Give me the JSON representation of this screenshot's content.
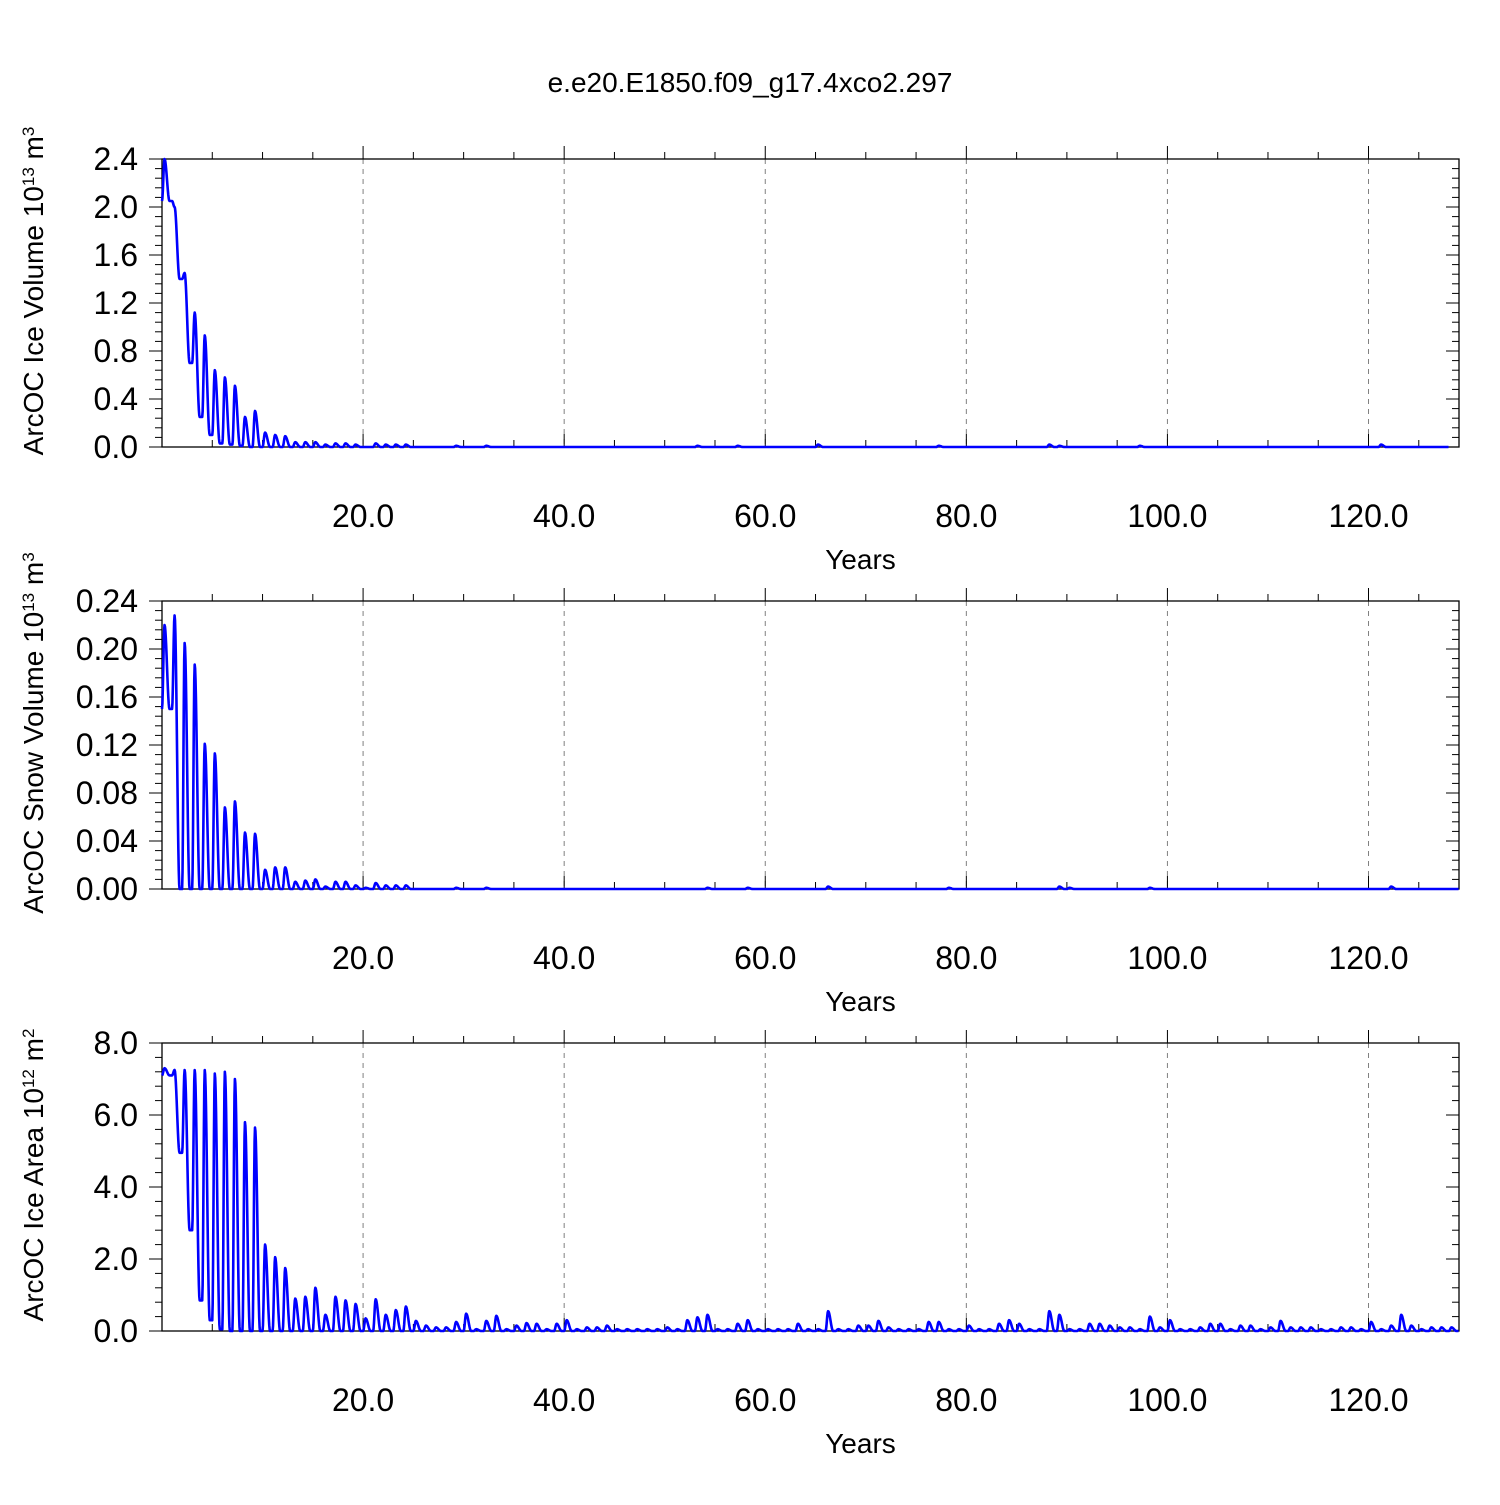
{
  "figure": {
    "title": "e.e20.E1850.f09_g17.4xco2.297"
  },
  "chart_data": [
    {
      "type": "line",
      "name": "ice-volume",
      "ylabel": {
        "base": "ArcOC Ice Volume 10",
        "exp": "13",
        "unit": " m",
        "unit_exp": "3"
      },
      "xlabel": "Years",
      "xlim": [
        0,
        129
      ],
      "ylim": [
        0,
        2.4
      ],
      "xticks": [
        20,
        40,
        60,
        80,
        100,
        120
      ],
      "xtick_labels": [
        "20.0",
        "40.0",
        "60.0",
        "80.0",
        "100.0",
        "120.0"
      ],
      "yticks": [
        0,
        0.4,
        0.8,
        1.2,
        1.6,
        2.0,
        2.4
      ],
      "ytick_labels": [
        "0.0",
        "0.4",
        "0.8",
        "1.2",
        "1.6",
        "2.0",
        "2.4"
      ],
      "grid": "x-dashed",
      "color": "#0000ff",
      "series": [
        {
          "annual_max": [
            2.4,
            2.0,
            1.45,
            1.12,
            0.93,
            0.64,
            0.58,
            0.51,
            0.25,
            0.3,
            0.12,
            0.1,
            0.09,
            0.04,
            0.04,
            0.04,
            0.02,
            0.03,
            0.03,
            0.02,
            0,
            0.03,
            0.02,
            0.02,
            0.02,
            0,
            0,
            0,
            0,
            0.01,
            0,
            0,
            0.01,
            0,
            0,
            0,
            0,
            0,
            0,
            0,
            0,
            0,
            0,
            0,
            0,
            0,
            0,
            0,
            0,
            0,
            0,
            0,
            0,
            0.01,
            0,
            0,
            0,
            0.01,
            0,
            0,
            0,
            0,
            0,
            0,
            0,
            0.02,
            0,
            0,
            0,
            0,
            0,
            0,
            0,
            0,
            0,
            0,
            0,
            0.01,
            0,
            0,
            0,
            0,
            0,
            0,
            0,
            0,
            0,
            0,
            0.02,
            0.01,
            0,
            0,
            0,
            0,
            0,
            0,
            0,
            0.01,
            0,
            0,
            0,
            0,
            0,
            0,
            0,
            0,
            0,
            0,
            0,
            0,
            0,
            0,
            0,
            0,
            0,
            0,
            0,
            0,
            0,
            0,
            0,
            0.02,
            0,
            0,
            0,
            0,
            0,
            0
          ],
          "annual_min": [
            2.05,
            1.4,
            0.7,
            0.25,
            0.1,
            0.03,
            0.02,
            0.01,
            0,
            0,
            0,
            0,
            0,
            0,
            0,
            0,
            0,
            0,
            0,
            0,
            0,
            0,
            0,
            0,
            0,
            0,
            0,
            0,
            0,
            0,
            0,
            0,
            0,
            0,
            0,
            0,
            0,
            0,
            0,
            0,
            0,
            0,
            0,
            0,
            0,
            0,
            0,
            0,
            0,
            0,
            0,
            0,
            0,
            0,
            0,
            0,
            0,
            0,
            0,
            0,
            0,
            0,
            0,
            0,
            0,
            0,
            0,
            0,
            0,
            0,
            0,
            0,
            0,
            0,
            0,
            0,
            0,
            0,
            0,
            0,
            0,
            0,
            0,
            0,
            0,
            0,
            0,
            0,
            0,
            0,
            0,
            0,
            0,
            0,
            0,
            0,
            0,
            0,
            0,
            0,
            0,
            0,
            0,
            0,
            0,
            0,
            0,
            0,
            0,
            0,
            0,
            0,
            0,
            0,
            0,
            0,
            0,
            0,
            0,
            0,
            0,
            0,
            0,
            0,
            0,
            0,
            0,
            0,
            0
          ]
        }
      ]
    },
    {
      "type": "line",
      "name": "snow-volume",
      "ylabel": {
        "base": "ArcOC Snow Volume 10",
        "exp": "13",
        "unit": " m",
        "unit_exp": "3"
      },
      "xlabel": "Years",
      "xlim": [
        0,
        129
      ],
      "ylim": [
        0,
        0.24
      ],
      "xticks": [
        20,
        40,
        60,
        80,
        100,
        120
      ],
      "xtick_labels": [
        "20.0",
        "40.0",
        "60.0",
        "80.0",
        "100.0",
        "120.0"
      ],
      "yticks": [
        0,
        0.04,
        0.08,
        0.12,
        0.16,
        0.2,
        0.24
      ],
      "ytick_labels": [
        "0.00",
        "0.04",
        "0.08",
        "0.12",
        "0.16",
        "0.20",
        "0.24"
      ],
      "grid": "x-dashed",
      "color": "#0000ff",
      "series": [
        {
          "annual_max": [
            0.22,
            0.228,
            0.205,
            0.187,
            0.121,
            0.113,
            0.068,
            0.073,
            0.047,
            0.046,
            0.016,
            0.018,
            0.018,
            0.006,
            0.007,
            0.008,
            0.002,
            0.006,
            0.006,
            0.003,
            0.001,
            0.005,
            0.003,
            0.003,
            0.003,
            0,
            0,
            0,
            0,
            0.001,
            0,
            0,
            0.001,
            0,
            0,
            0,
            0,
            0,
            0,
            0,
            0,
            0,
            0,
            0,
            0,
            0,
            0,
            0,
            0,
            0,
            0,
            0,
            0,
            0,
            0.001,
            0,
            0,
            0,
            0.001,
            0,
            0,
            0,
            0,
            0,
            0,
            0,
            0.002,
            0,
            0,
            0,
            0,
            0,
            0,
            0,
            0,
            0,
            0,
            0,
            0.001,
            0,
            0,
            0,
            0,
            0,
            0,
            0,
            0,
            0,
            0,
            0.002,
            0.001,
            0,
            0,
            0,
            0,
            0,
            0,
            0,
            0.001,
            0,
            0,
            0,
            0,
            0,
            0,
            0,
            0,
            0,
            0,
            0,
            0,
            0,
            0,
            0,
            0,
            0,
            0,
            0,
            0,
            0,
            0,
            0,
            0.002,
            0,
            0,
            0,
            0,
            0,
            0
          ],
          "annual_min": [
            0.15,
            0,
            0,
            0,
            0,
            0,
            0,
            0,
            0,
            0,
            0,
            0,
            0,
            0,
            0,
            0,
            0,
            0,
            0,
            0,
            0,
            0,
            0,
            0,
            0,
            0,
            0,
            0,
            0,
            0,
            0,
            0,
            0,
            0,
            0,
            0,
            0,
            0,
            0,
            0,
            0,
            0,
            0,
            0,
            0,
            0,
            0,
            0,
            0,
            0,
            0,
            0,
            0,
            0,
            0,
            0,
            0,
            0,
            0,
            0,
            0,
            0,
            0,
            0,
            0,
            0,
            0,
            0,
            0,
            0,
            0,
            0,
            0,
            0,
            0,
            0,
            0,
            0,
            0,
            0,
            0,
            0,
            0,
            0,
            0,
            0,
            0,
            0,
            0,
            0,
            0,
            0,
            0,
            0,
            0,
            0,
            0,
            0,
            0,
            0,
            0,
            0,
            0,
            0,
            0,
            0,
            0,
            0,
            0,
            0,
            0,
            0,
            0,
            0,
            0,
            0,
            0,
            0,
            0,
            0,
            0,
            0,
            0,
            0,
            0,
            0,
            0,
            0,
            0
          ]
        }
      ]
    },
    {
      "type": "line",
      "name": "ice-area",
      "ylabel": {
        "base": "ArcOC Ice Area 10",
        "exp": "12",
        "unit": " m",
        "unit_exp": "2"
      },
      "xlabel": "Years",
      "xlim": [
        0,
        129
      ],
      "ylim": [
        0,
        8.0
      ],
      "xticks": [
        20,
        40,
        60,
        80,
        100,
        120
      ],
      "xtick_labels": [
        "20.0",
        "40.0",
        "60.0",
        "80.0",
        "100.0",
        "120.0"
      ],
      "yticks": [
        0,
        2.0,
        4.0,
        6.0,
        8.0
      ],
      "ytick_labels": [
        "0.0",
        "2.0",
        "4.0",
        "6.0",
        "8.0"
      ],
      "grid": "x-dashed",
      "color": "#0000ff",
      "series": [
        {
          "annual_max": [
            7.3,
            7.25,
            7.25,
            7.25,
            7.25,
            7.15,
            7.2,
            7.0,
            5.8,
            5.65,
            2.4,
            2.05,
            1.75,
            0.9,
            0.95,
            1.2,
            0.45,
            0.95,
            0.85,
            0.75,
            0.35,
            0.88,
            0.45,
            0.58,
            0.68,
            0.28,
            0.15,
            0.1,
            0.1,
            0.25,
            0.48,
            0.05,
            0.28,
            0.42,
            0.05,
            0.15,
            0.22,
            0.2,
            0.05,
            0.2,
            0.3,
            0.05,
            0.1,
            0.1,
            0.15,
            0.05,
            0.05,
            0.05,
            0.05,
            0.05,
            0.1,
            0.05,
            0.3,
            0.38,
            0.45,
            0.05,
            0.05,
            0.2,
            0.3,
            0.05,
            0.05,
            0.05,
            0.05,
            0.2,
            0.05,
            0.05,
            0.55,
            0.05,
            0.05,
            0.15,
            0.15,
            0.28,
            0.1,
            0.05,
            0.05,
            0.05,
            0.25,
            0.25,
            0.05,
            0.05,
            0.15,
            0.05,
            0.05,
            0.2,
            0.3,
            0.2,
            0.05,
            0.05,
            0.55,
            0.45,
            0.05,
            0.05,
            0.2,
            0.2,
            0.15,
            0.1,
            0.1,
            0.05,
            0.4,
            0.1,
            0.3,
            0.05,
            0.05,
            0.1,
            0.2,
            0.2,
            0.05,
            0.15,
            0.15,
            0.05,
            0.1,
            0.28,
            0.1,
            0.1,
            0.1,
            0.05,
            0.05,
            0.1,
            0.1,
            0.05,
            0.25,
            0.05,
            0.15,
            0.45,
            0.15,
            0.05,
            0.1,
            0.1,
            0.1
          ],
          "annual_min": [
            7.1,
            4.95,
            2.8,
            0.85,
            0.3,
            0.05,
            0,
            0,
            0,
            0,
            0,
            0,
            0,
            0,
            0,
            0,
            0,
            0,
            0,
            0,
            0,
            0,
            0,
            0,
            0,
            0,
            0,
            0,
            0,
            0,
            0,
            0,
            0,
            0,
            0,
            0,
            0,
            0,
            0,
            0,
            0,
            0,
            0,
            0,
            0,
            0,
            0,
            0,
            0,
            0,
            0,
            0,
            0,
            0,
            0,
            0,
            0,
            0,
            0,
            0,
            0,
            0,
            0,
            0,
            0,
            0,
            0,
            0,
            0,
            0,
            0,
            0,
            0,
            0,
            0,
            0,
            0,
            0,
            0,
            0,
            0,
            0,
            0,
            0,
            0,
            0,
            0,
            0,
            0,
            0,
            0,
            0,
            0,
            0,
            0,
            0,
            0,
            0,
            0,
            0,
            0,
            0,
            0,
            0,
            0,
            0,
            0,
            0,
            0,
            0,
            0,
            0,
            0,
            0,
            0,
            0,
            0,
            0,
            0,
            0,
            0,
            0,
            0,
            0,
            0,
            0,
            0,
            0,
            0
          ]
        }
      ]
    }
  ]
}
